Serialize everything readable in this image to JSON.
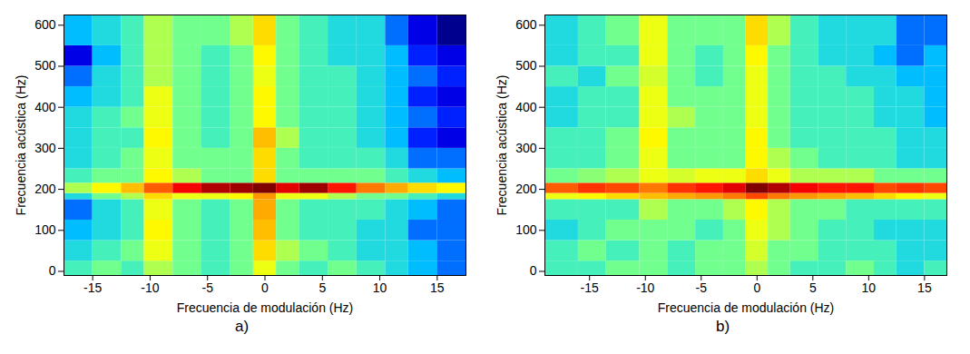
{
  "chart_data": [
    {
      "type": "heatmap",
      "title": "a)",
      "x_label": "Frecuencia de modulación (Hz)",
      "y_label": "Frecuencia acústica (Hz)",
      "xlim": [
        -17.5,
        17.5
      ],
      "ylim": [
        -10,
        625
      ],
      "xticks": [
        -15,
        -10,
        -5,
        0,
        5,
        10,
        15
      ],
      "yticks": [
        0,
        100,
        200,
        300,
        400,
        500,
        600
      ],
      "x_bins": [
        -17.5,
        -15,
        -12.5,
        -10.5,
        -8,
        -5.5,
        -3,
        -1,
        1,
        3,
        5.5,
        8,
        10.5,
        12.5,
        15,
        17.5
      ],
      "y_bins": [
        -10,
        25,
        75,
        125,
        175,
        190,
        215,
        250,
        300,
        350,
        400,
        450,
        500,
        550,
        625
      ],
      "cells": [
        [
          0.45,
          0.5,
          0.45,
          0.55,
          0.5,
          0.45,
          0.5,
          0.6,
          0.5,
          0.45,
          0.5,
          0.45,
          0.4,
          0.35,
          0.3
        ],
        [
          0.4,
          0.45,
          0.5,
          0.6,
          0.5,
          0.45,
          0.5,
          0.65,
          0.55,
          0.5,
          0.45,
          0.4,
          0.4,
          0.35,
          0.3
        ],
        [
          0.35,
          0.4,
          0.45,
          0.62,
          0.5,
          0.45,
          0.5,
          0.68,
          0.5,
          0.45,
          0.45,
          0.4,
          0.4,
          0.3,
          0.3
        ],
        [
          0.3,
          0.4,
          0.45,
          0.6,
          0.5,
          0.45,
          0.5,
          0.7,
          0.5,
          0.45,
          0.45,
          0.45,
          0.4,
          0.35,
          0.3
        ],
        [
          0.4,
          0.5,
          0.55,
          0.65,
          0.6,
          0.6,
          0.62,
          0.72,
          0.6,
          0.6,
          0.55,
          0.5,
          0.5,
          0.45,
          0.4
        ],
        [
          0.55,
          0.62,
          0.68,
          0.78,
          0.88,
          0.95,
          0.97,
          1.0,
          0.9,
          0.97,
          0.85,
          0.75,
          0.7,
          0.65,
          0.62
        ],
        [
          0.45,
          0.5,
          0.5,
          0.62,
          0.55,
          0.5,
          0.5,
          0.65,
          0.5,
          0.5,
          0.5,
          0.5,
          0.45,
          0.4,
          0.35
        ],
        [
          0.4,
          0.45,
          0.5,
          0.6,
          0.5,
          0.5,
          0.5,
          0.65,
          0.5,
          0.45,
          0.45,
          0.45,
          0.4,
          0.3,
          0.3
        ],
        [
          0.4,
          0.45,
          0.45,
          0.62,
          0.5,
          0.45,
          0.5,
          0.68,
          0.55,
          0.45,
          0.45,
          0.4,
          0.35,
          0.25,
          0.2
        ],
        [
          0.4,
          0.45,
          0.5,
          0.6,
          0.5,
          0.45,
          0.5,
          0.62,
          0.5,
          0.45,
          0.45,
          0.4,
          0.35,
          0.3,
          0.25
        ],
        [
          0.35,
          0.4,
          0.45,
          0.6,
          0.5,
          0.45,
          0.5,
          0.62,
          0.5,
          0.45,
          0.45,
          0.4,
          0.35,
          0.25,
          0.2
        ],
        [
          0.3,
          0.4,
          0.45,
          0.55,
          0.5,
          0.45,
          0.5,
          0.6,
          0.5,
          0.45,
          0.45,
          0.4,
          0.35,
          0.3,
          0.25
        ],
        [
          0.2,
          0.35,
          0.45,
          0.55,
          0.5,
          0.45,
          0.5,
          0.62,
          0.5,
          0.45,
          0.4,
          0.4,
          0.35,
          0.25,
          0.2
        ],
        [
          0.35,
          0.4,
          0.45,
          0.55,
          0.5,
          0.5,
          0.55,
          0.65,
          0.5,
          0.45,
          0.4,
          0.4,
          0.3,
          0.2,
          0.1
        ]
      ]
    },
    {
      "type": "heatmap",
      "title": "b)",
      "x_label": "Frecuencia de modulación (Hz)",
      "y_label": "Frecuencia acústica (Hz)",
      "xlim": [
        -19,
        17
      ],
      "ylim": [
        -10,
        625
      ],
      "xticks": [
        -15,
        -10,
        -5,
        0,
        5,
        10,
        15
      ],
      "yticks": [
        0,
        100,
        200,
        300,
        400,
        500,
        600
      ],
      "x_bins": [
        -19,
        -16,
        -13.5,
        -10.5,
        -8,
        -5.5,
        -3,
        -1,
        1,
        3,
        5.5,
        8,
        10.5,
        12.5,
        15,
        17
      ],
      "y_bins": [
        -10,
        25,
        75,
        125,
        175,
        190,
        215,
        250,
        300,
        350,
        400,
        450,
        500,
        550,
        625
      ],
      "cells": [
        [
          0.45,
          0.45,
          0.5,
          0.5,
          0.45,
          0.5,
          0.5,
          0.55,
          0.5,
          0.45,
          0.45,
          0.5,
          0.45,
          0.4,
          0.45
        ],
        [
          0.45,
          0.5,
          0.45,
          0.5,
          0.45,
          0.5,
          0.5,
          0.58,
          0.5,
          0.5,
          0.45,
          0.45,
          0.45,
          0.4,
          0.4
        ],
        [
          0.4,
          0.45,
          0.5,
          0.5,
          0.5,
          0.45,
          0.5,
          0.6,
          0.55,
          0.5,
          0.45,
          0.45,
          0.4,
          0.4,
          0.4
        ],
        [
          0.45,
          0.45,
          0.45,
          0.55,
          0.5,
          0.5,
          0.55,
          0.62,
          0.55,
          0.5,
          0.5,
          0.45,
          0.45,
          0.45,
          0.45
        ],
        [
          0.6,
          0.62,
          0.65,
          0.68,
          0.7,
          0.72,
          0.75,
          0.8,
          0.75,
          0.72,
          0.7,
          0.68,
          0.65,
          0.62,
          0.6
        ],
        [
          0.78,
          0.82,
          0.8,
          0.75,
          0.82,
          0.85,
          0.9,
          1.0,
          0.95,
          0.88,
          0.85,
          0.85,
          0.8,
          0.82,
          0.8
        ],
        [
          0.5,
          0.52,
          0.55,
          0.6,
          0.58,
          0.6,
          0.6,
          0.65,
          0.6,
          0.55,
          0.55,
          0.55,
          0.5,
          0.5,
          0.5
        ],
        [
          0.45,
          0.45,
          0.5,
          0.6,
          0.5,
          0.5,
          0.5,
          0.62,
          0.55,
          0.5,
          0.45,
          0.45,
          0.45,
          0.4,
          0.4
        ],
        [
          0.45,
          0.45,
          0.5,
          0.62,
          0.5,
          0.5,
          0.5,
          0.62,
          0.5,
          0.45,
          0.45,
          0.45,
          0.45,
          0.4,
          0.4
        ],
        [
          0.4,
          0.45,
          0.45,
          0.6,
          0.55,
          0.5,
          0.5,
          0.6,
          0.5,
          0.45,
          0.45,
          0.45,
          0.4,
          0.4,
          0.35
        ],
        [
          0.4,
          0.45,
          0.45,
          0.6,
          0.5,
          0.5,
          0.5,
          0.6,
          0.5,
          0.45,
          0.45,
          0.45,
          0.4,
          0.4,
          0.35
        ],
        [
          0.45,
          0.4,
          0.5,
          0.58,
          0.5,
          0.45,
          0.5,
          0.6,
          0.5,
          0.45,
          0.45,
          0.4,
          0.4,
          0.35,
          0.35
        ],
        [
          0.4,
          0.45,
          0.45,
          0.6,
          0.5,
          0.45,
          0.5,
          0.62,
          0.5,
          0.45,
          0.4,
          0.4,
          0.35,
          0.3,
          0.35
        ],
        [
          0.4,
          0.45,
          0.5,
          0.6,
          0.5,
          0.5,
          0.5,
          0.65,
          0.55,
          0.45,
          0.4,
          0.4,
          0.4,
          0.3,
          0.3
        ]
      ]
    }
  ]
}
